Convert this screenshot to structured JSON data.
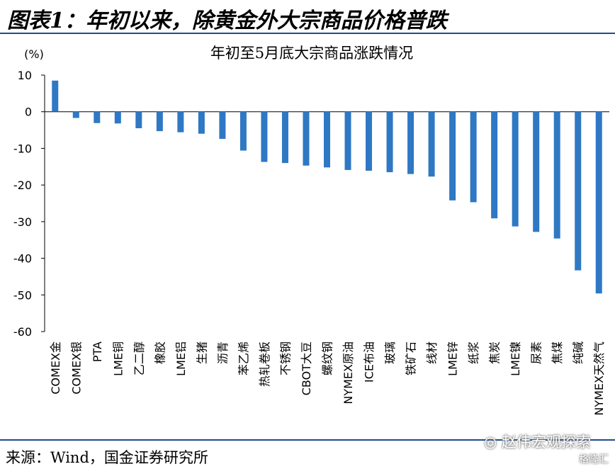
{
  "figure": {
    "title": "图表1：年初以来，除黄金外大宗商品价格普跌",
    "source": "来源：Wind，国金证券研究所",
    "watermark": "赵伟宏观探索",
    "watermark_sub": "格隆汇"
  },
  "colors": {
    "bar": "#2f78c4",
    "rule": "#1f4e8c"
  },
  "chart_data": {
    "type": "bar",
    "title": "年初至5月底大宗商品涨跌情况",
    "ylabel": "(%)",
    "xlabel": "",
    "ylim": [
      -60,
      10
    ],
    "yticks": [
      10,
      0,
      -10,
      -20,
      -30,
      -40,
      -50,
      -60
    ],
    "grid": false,
    "categories": [
      "COMEX金",
      "COMEX银",
      "PTA",
      "LME铜",
      "乙二醇",
      "橡胶",
      "LME铝",
      "生猪",
      "沥青",
      "苯乙烯",
      "热轧卷板",
      "不锈钢",
      "CBOT大豆",
      "螺纹钢",
      "NYMEX原油",
      "ICE布油",
      "玻璃",
      "铁矿石",
      "线材",
      "LME锌",
      "纸浆",
      "焦炭",
      "LME镍",
      "尿素",
      "焦煤",
      "纯碱",
      "NYMEX天然气"
    ],
    "values": [
      8.5,
      -1.7,
      -3.1,
      -3.2,
      -4.5,
      -5.3,
      -5.6,
      -6.0,
      -7.4,
      -10.6,
      -13.7,
      -14.0,
      -14.7,
      -15.2,
      -15.9,
      -16.1,
      -16.5,
      -17.0,
      -17.7,
      -24.2,
      -24.7,
      -29.1,
      -31.3,
      -32.8,
      -34.6,
      -43.3,
      -49.6
    ]
  }
}
